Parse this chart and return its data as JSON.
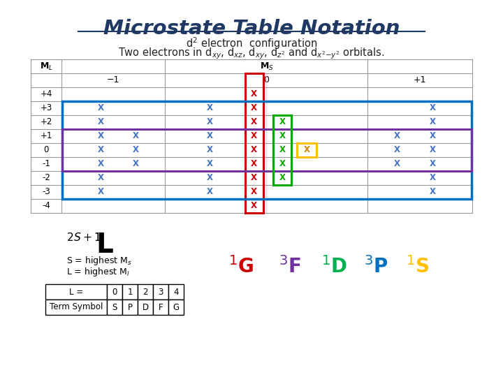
{
  "title": "Microstate Table Notation",
  "bg_color": "#ffffff",
  "title_color": "#1f3864",
  "ml_labels": [
    "+4",
    "+3",
    "+2",
    "+1",
    "0",
    "-1",
    "-2",
    "-3",
    "-4"
  ],
  "term_symbols": [
    {
      "label": "1G",
      "color": "#cc0000"
    },
    {
      "label": "3F",
      "color": "#7030a0"
    },
    {
      "label": "1D",
      "color": "#00b050"
    },
    {
      "label": "3P",
      "color": "#0070c0"
    },
    {
      "label": "1S",
      "color": "#ffc000"
    }
  ]
}
